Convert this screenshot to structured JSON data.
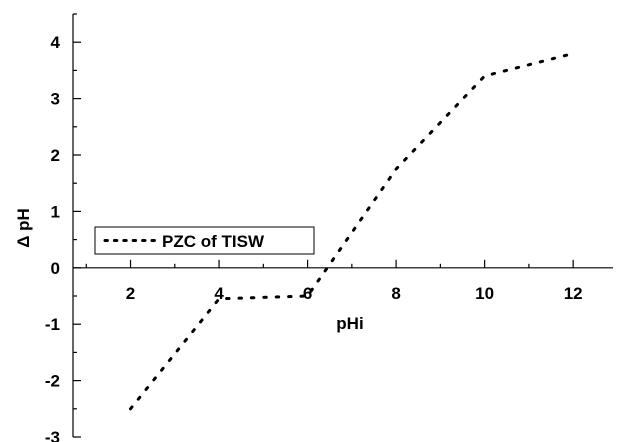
{
  "chart_data": {
    "type": "line",
    "title": "",
    "xlabel": "pHi",
    "ylabel": "Δ pH",
    "xlim": [
      0.7,
      12.9
    ],
    "ylim": [
      -3,
      4.5
    ],
    "x_ticks": [
      2,
      4,
      6,
      8,
      10,
      12
    ],
    "y_ticks": [
      -3,
      -2,
      -1,
      0,
      1,
      2,
      3,
      4
    ],
    "grid": false,
    "legend_position": "left, just above the x-axis",
    "line_style": "dotted",
    "line_color": "#000000",
    "series": [
      {
        "name": "PZC of TISW",
        "x": [
          2,
          4,
          6,
          8,
          10,
          12
        ],
        "y": [
          -2.5,
          -0.55,
          -0.5,
          1.75,
          3.4,
          3.8
        ]
      }
    ]
  }
}
